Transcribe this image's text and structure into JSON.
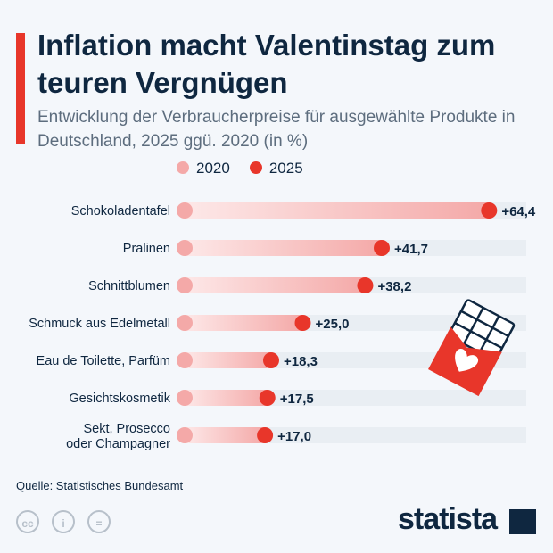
{
  "header": {
    "title": "Inflation macht Valentinstag zum teuren Vergnügen",
    "subtitle": "Entwicklung der Verbraucherpreise für ausgewählte Produkte in Deutschland, 2025 ggü. 2020 (in %)"
  },
  "chart_data": {
    "type": "dot-bar",
    "categories": [
      "Schokoladentafel",
      "Pralinen",
      "Schnittblumen",
      "Schmuck aus Edelmetall",
      "Eau de Toilette, Parfüm",
      "Gesichtskosmetik",
      "Sekt, Prosecco oder Champagner"
    ],
    "series": [
      {
        "name": "2020",
        "values": [
          0,
          0,
          0,
          0,
          0,
          0,
          0
        ],
        "color": "#f4a9a8"
      },
      {
        "name": "2025",
        "values": [
          64.4,
          41.7,
          38.2,
          25.0,
          18.3,
          17.5,
          17.0
        ],
        "color": "#e8362a"
      }
    ],
    "data_labels": [
      "+64,4",
      "+41,7",
      "+38,2",
      "+25,0",
      "+18,3",
      "+17,5",
      "+17,0"
    ],
    "legend_position": "top"
  },
  "footer": {
    "source": "Quelle: Statistisches Bundesamt",
    "brand": "statista"
  },
  "colors": {
    "accent": "#e8362a",
    "light": "#f4a9a8",
    "navy": "#0f2740"
  }
}
